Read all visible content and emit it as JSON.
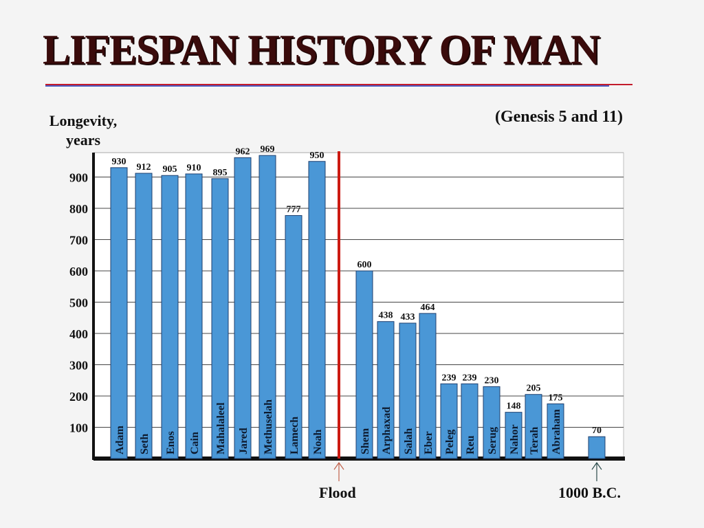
{
  "title": "LIFESPAN HISTORY OF MAN",
  "subtitle": "(Genesis 5 and 11)",
  "ylabel_line1": "Longevity,",
  "ylabel_line2": "years",
  "annotations": {
    "flood": "Flood",
    "bc": "1000 B.C."
  },
  "colors": {
    "bar": "#4a97d6",
    "bar_edge": "#1f3f6e",
    "flood_line": "#cc1a12",
    "title": "#3a0b0b",
    "axis": "#111111",
    "grid": "#444444"
  },
  "chart_data": {
    "type": "bar",
    "title": "LIFESPAN HISTORY OF MAN",
    "subtitle": "(Genesis 5 and 11)",
    "ylabel": "Longevity, years",
    "ylim": [
      0,
      1000
    ],
    "yticks": [
      100,
      200,
      300,
      400,
      500,
      600,
      700,
      800,
      900
    ],
    "grid": true,
    "groups": [
      {
        "name": "before-flood",
        "categories": [
          "Adam",
          "Seth",
          "Enos",
          "Cain",
          "Mahalaleel",
          "Jared",
          "Methuselah",
          "Lamech",
          "Noah"
        ],
        "values": [
          930,
          912,
          905,
          910,
          895,
          962,
          969,
          777,
          950
        ],
        "labels": [
          "930",
          "912",
          "905",
          "910",
          "895",
          "962",
          "969",
          "777",
          "950"
        ]
      },
      {
        "name": "after-flood",
        "categories": [
          "Shem",
          "Arphaxad",
          "Salah",
          "Eber",
          "Peleg",
          "Reu",
          "Serug",
          "Nahor",
          "Terah",
          "Abraham"
        ],
        "values": [
          600,
          438,
          433,
          464,
          239,
          239,
          230,
          148,
          205,
          175
        ],
        "labels": [
          "600",
          "438",
          "433",
          "464",
          "239",
          "239",
          "230",
          "148",
          "205",
          "175"
        ]
      },
      {
        "name": "1000-bc",
        "categories": [
          ""
        ],
        "values": [
          70
        ],
        "labels": [
          "70"
        ]
      }
    ],
    "markers": [
      "Flood",
      "1000 B.C."
    ]
  }
}
